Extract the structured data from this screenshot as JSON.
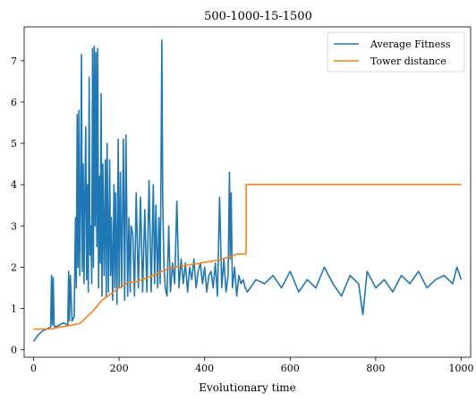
{
  "chart_data": {
    "type": "line",
    "title": "500-1000-15-1500",
    "xlabel": "Evolutionary time",
    "ylabel": "",
    "xlim": [
      -22,
      1022
    ],
    "ylim": [
      -0.18,
      7.82
    ],
    "xticks": [
      0,
      200,
      400,
      600,
      800,
      1000
    ],
    "yticks": [
      0,
      1,
      2,
      3,
      4,
      5,
      6,
      7
    ],
    "grid": false,
    "legend": "top-right",
    "series": [
      {
        "name": "Average Fitness",
        "color": "#1f77b4",
        "x": [
          0,
          10,
          20,
          30,
          40,
          42,
          44,
          46,
          48,
          50,
          60,
          70,
          80,
          82,
          84,
          86,
          90,
          95,
          98,
          100,
          102,
          104,
          106,
          108,
          110,
          112,
          114,
          116,
          118,
          120,
          122,
          124,
          126,
          128,
          130,
          132,
          134,
          136,
          138,
          140,
          142,
          144,
          146,
          148,
          150,
          152,
          154,
          156,
          158,
          160,
          162,
          165,
          168,
          170,
          172,
          175,
          178,
          180,
          182,
          185,
          188,
          190,
          192,
          195,
          198,
          200,
          203,
          206,
          210,
          213,
          216,
          220,
          223,
          226,
          228,
          232,
          236,
          240,
          245,
          250,
          255,
          260,
          265,
          270,
          275,
          280,
          283,
          286,
          290,
          293,
          296,
          298,
          300,
          302,
          305,
          308,
          312,
          316,
          320,
          325,
          330,
          335,
          340,
          345,
          350,
          355,
          360,
          365,
          370,
          375,
          380,
          385,
          390,
          395,
          400,
          405,
          410,
          415,
          420,
          425,
          430,
          435,
          440,
          445,
          450,
          455,
          458,
          460,
          462,
          465,
          470,
          475,
          480,
          485,
          490,
          495,
          500,
          520,
          540,
          560,
          580,
          600,
          620,
          640,
          660,
          680,
          700,
          720,
          740,
          760,
          770,
          780,
          800,
          820,
          840,
          860,
          880,
          900,
          920,
          940,
          960,
          980,
          990,
          1000
        ],
        "values": [
          0.2,
          0.35,
          0.45,
          0.5,
          0.55,
          1.8,
          0.6,
          1.75,
          0.6,
          0.55,
          0.6,
          0.65,
          0.6,
          1.9,
          0.7,
          1.8,
          0.7,
          0.8,
          3.2,
          1.5,
          5.7,
          2.0,
          5.8,
          1.8,
          3.5,
          7.15,
          1.9,
          4.5,
          1.6,
          3.8,
          5.4,
          1.7,
          4.0,
          1.4,
          6.6,
          2.3,
          3.0,
          1.6,
          7.3,
          2.0,
          7.35,
          3.0,
          7.2,
          2.5,
          7.3,
          1.5,
          4.2,
          2.1,
          6.2,
          1.3,
          4.5,
          1.8,
          4.6,
          1.3,
          5.0,
          1.4,
          4.6,
          1.8,
          3.2,
          1.2,
          4.0,
          1.5,
          3.8,
          1.1,
          5.1,
          1.5,
          4.3,
          1.5,
          5.1,
          1.2,
          5.2,
          1.3,
          3.2,
          1.4,
          3.0,
          2.8,
          1.3,
          3.8,
          1.5,
          3.7,
          1.4,
          3.4,
          1.4,
          4.1,
          1.4,
          4.0,
          1.6,
          3.5,
          1.5,
          3.2,
          1.6,
          4.3,
          7.5,
          3.6,
          2.0,
          1.5,
          1.3,
          3.0,
          1.4,
          2.1,
          1.6,
          3.6,
          1.5,
          2.2,
          1.6,
          2.1,
          1.4,
          2.0,
          1.7,
          2.2,
          1.5,
          1.9,
          2.1,
          1.6,
          2.0,
          1.4,
          1.8,
          1.9,
          1.5,
          2.1,
          1.3,
          3.7,
          1.5,
          2.2,
          1.4,
          1.8,
          4.3,
          2.2,
          3.8,
          1.5,
          2.0,
          1.3,
          1.8,
          1.6,
          1.7,
          1.5,
          1.4,
          1.7,
          1.6,
          1.8,
          1.5,
          1.9,
          1.4,
          1.7,
          1.5,
          2.0,
          1.6,
          1.3,
          1.8,
          1.6,
          0.85,
          1.9,
          1.5,
          1.7,
          1.4,
          1.8,
          1.6,
          1.9,
          1.5,
          1.7,
          1.8,
          1.6,
          2.0,
          1.7
        ]
      },
      {
        "name": "Tower distance",
        "color": "#ff7f0e",
        "x": [
          0,
          40,
          60,
          80,
          100,
          110,
          120,
          140,
          160,
          180,
          200,
          220,
          240,
          260,
          280,
          300,
          320,
          340,
          360,
          380,
          400,
          420,
          440,
          460,
          470,
          480,
          490,
          497,
          497,
          520,
          600,
          700,
          800,
          900,
          1000
        ],
        "values": [
          0.5,
          0.5,
          0.55,
          0.58,
          0.62,
          0.65,
          0.75,
          0.95,
          1.2,
          1.35,
          1.5,
          1.62,
          1.65,
          1.72,
          1.8,
          1.9,
          1.98,
          2.02,
          2.05,
          2.08,
          2.12,
          2.15,
          2.2,
          2.25,
          2.3,
          2.32,
          2.32,
          2.32,
          4.0,
          4.0,
          4.0,
          4.0,
          4.0,
          4.0,
          4.0
        ]
      }
    ]
  }
}
